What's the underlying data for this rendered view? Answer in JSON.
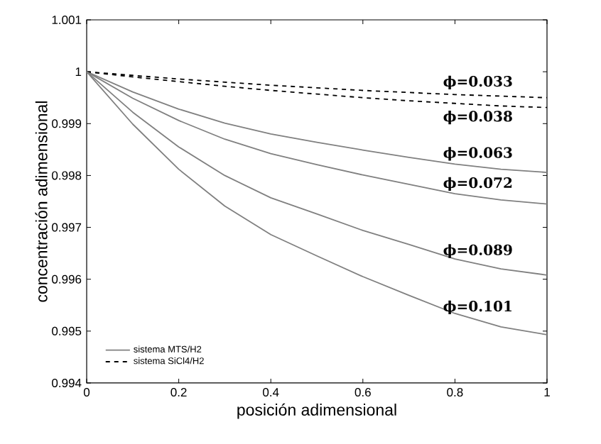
{
  "chart_data": {
    "type": "line",
    "xlabel": "posición adimensional",
    "ylabel": "concentración adimensional",
    "x": [
      0,
      0.1,
      0.2,
      0.3,
      0.4,
      0.5,
      0.6,
      0.7,
      0.8,
      0.9,
      1
    ],
    "series": [
      {
        "name": "sistema SiCl4/H2",
        "color": "#000000",
        "line_style": "dashed",
        "values": [
          1,
          0.99993,
          0.99986,
          0.9998,
          0.99974,
          0.99969,
          0.99964,
          0.9996,
          0.99956,
          0.99953,
          0.9995
        ]
      },
      {
        "color": "#000000",
        "line_style": "dashed",
        "values": [
          1,
          0.9999,
          0.99981,
          0.99972,
          0.99964,
          0.99957,
          0.9995,
          0.99944,
          0.99939,
          0.99934,
          0.99931
        ]
      },
      {
        "name": "sistema MTS/H2",
        "color": "#808080",
        "line_style": "solid",
        "values": [
          1,
          0.99961,
          0.99928,
          0.99901,
          0.9988,
          0.99864,
          0.99849,
          0.99835,
          0.99822,
          0.99812,
          0.99806
        ]
      },
      {
        "color": "#808080",
        "line_style": "solid",
        "values": [
          1,
          0.99949,
          0.99906,
          0.9987,
          0.99842,
          0.99821,
          0.99801,
          0.99783,
          0.99765,
          0.99753,
          0.99745
        ]
      },
      {
        "color": "#808080",
        "line_style": "solid",
        "values": [
          1,
          0.99922,
          0.99855,
          0.998,
          0.99757,
          0.99726,
          0.99694,
          0.99667,
          0.99639,
          0.9962,
          0.99608
        ]
      },
      {
        "color": "#808080",
        "line_style": "solid",
        "values": [
          1,
          0.99899,
          0.99812,
          0.99741,
          0.99686,
          0.99645,
          0.99605,
          0.99569,
          0.99534,
          0.99508,
          0.99493
        ]
      }
    ],
    "xlim": [
      0,
      1
    ],
    "ylim": [
      0.994,
      1.001
    ],
    "xticks": [
      0,
      0.2,
      0.4,
      0.6,
      0.8,
      1
    ],
    "yticks": [
      0.994,
      0.995,
      0.996,
      0.997,
      0.998,
      0.999,
      1,
      1.001
    ],
    "annotations": [
      "ϕ=0.033",
      "ϕ=0.038",
      "ϕ=0.063",
      "ϕ=0.072",
      "ϕ=0.089",
      "ϕ=0.101"
    ],
    "grid": false,
    "legend": "bottom left",
    "marker": "none"
  }
}
